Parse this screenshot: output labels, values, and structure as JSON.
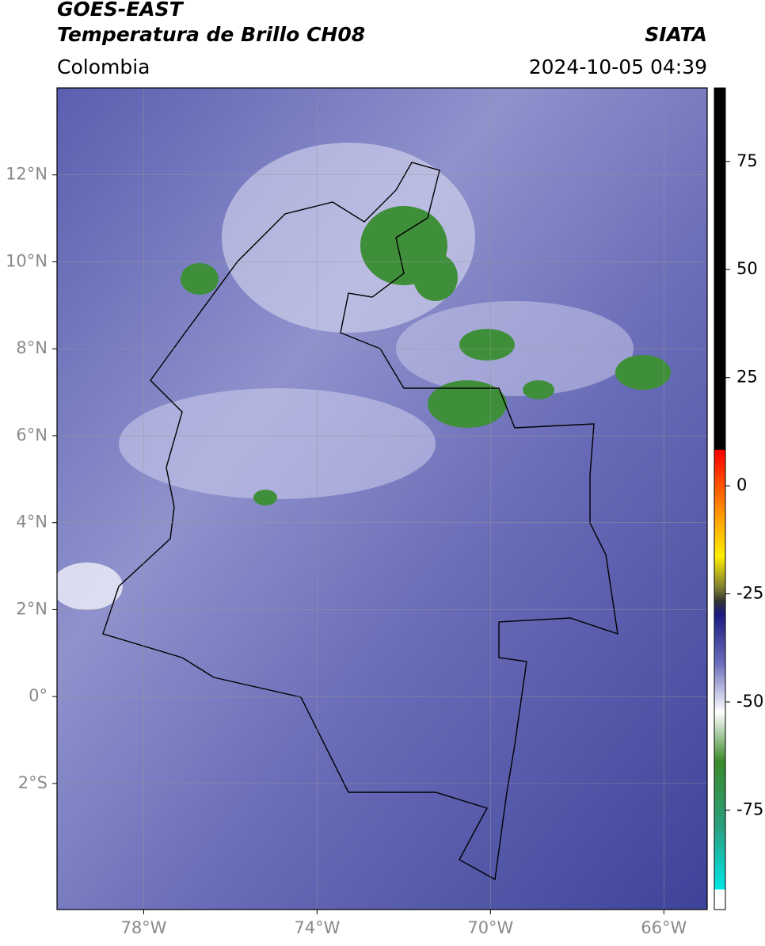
{
  "map": {
    "title": "GOES-EAST",
    "subtitle": "Temperatura de Brillo CH08",
    "source": "SIATA",
    "region": "Colombia",
    "datetime": "2024-10-05 04:39",
    "xlim": [
      -80,
      -65
    ],
    "ylim": [
      -4.9,
      14
    ],
    "xticks": [
      {
        "value": -78,
        "label": "78°W"
      },
      {
        "value": -74,
        "label": "74°W"
      },
      {
        "value": -70,
        "label": "70°W"
      },
      {
        "value": -66,
        "label": "66°W"
      }
    ],
    "yticks": [
      {
        "value": 12,
        "label": "12°N"
      },
      {
        "value": 10,
        "label": "10°N"
      },
      {
        "value": 8,
        "label": "8°N"
      },
      {
        "value": 6,
        "label": "6°N"
      },
      {
        "value": 4,
        "label": "4°N"
      },
      {
        "value": 2,
        "label": "2°N"
      },
      {
        "value": 0,
        "label": "0°"
      },
      {
        "value": -2,
        "label": "2°S"
      }
    ],
    "colorbar": {
      "lim": [
        -98,
        92
      ],
      "ticks": [
        75,
        50,
        25,
        0,
        -25,
        -50,
        -75
      ]
    }
  }
}
